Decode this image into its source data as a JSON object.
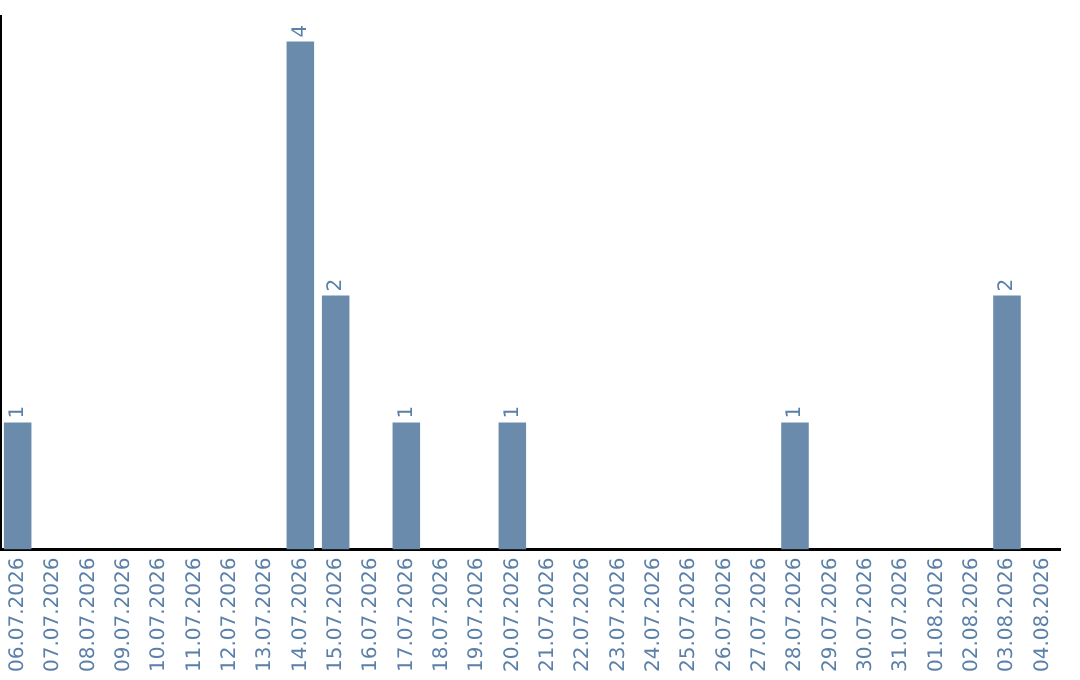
{
  "chart_data": {
    "type": "bar",
    "categories": [
      "06.07.2026",
      "07.07.2026",
      "08.07.2026",
      "09.07.2026",
      "10.07.2026",
      "11.07.2026",
      "12.07.2026",
      "13.07.2026",
      "14.07.2026",
      "15.07.2026",
      "16.07.2026",
      "17.07.2026",
      "18.07.2026",
      "19.07.2026",
      "20.07.2026",
      "21.07.2026",
      "22.07.2026",
      "23.07.2026",
      "24.07.2026",
      "25.07.2026",
      "26.07.2026",
      "27.07.2026",
      "28.07.2026",
      "29.07.2026",
      "30.07.2026",
      "31.07.2026",
      "01.08.2026",
      "02.08.2026",
      "03.08.2026",
      "04.08.2026"
    ],
    "values": [
      1,
      0,
      0,
      0,
      0,
      0,
      0,
      0,
      4,
      2,
      0,
      1,
      0,
      0,
      1,
      0,
      0,
      0,
      0,
      0,
      0,
      0,
      1,
      0,
      0,
      0,
      0,
      0,
      2,
      0
    ],
    "value_labels": [
      "1",
      null,
      null,
      null,
      null,
      null,
      null,
      null,
      "4",
      "2",
      null,
      "1",
      null,
      null,
      "1",
      null,
      null,
      null,
      null,
      null,
      null,
      null,
      "1",
      null,
      null,
      null,
      null,
      null,
      "2",
      null
    ],
    "color": "#6a8bab",
    "ylim": [
      0,
      4.2
    ],
    "tick_labels": "x",
    "grid": false,
    "legend": false
  }
}
